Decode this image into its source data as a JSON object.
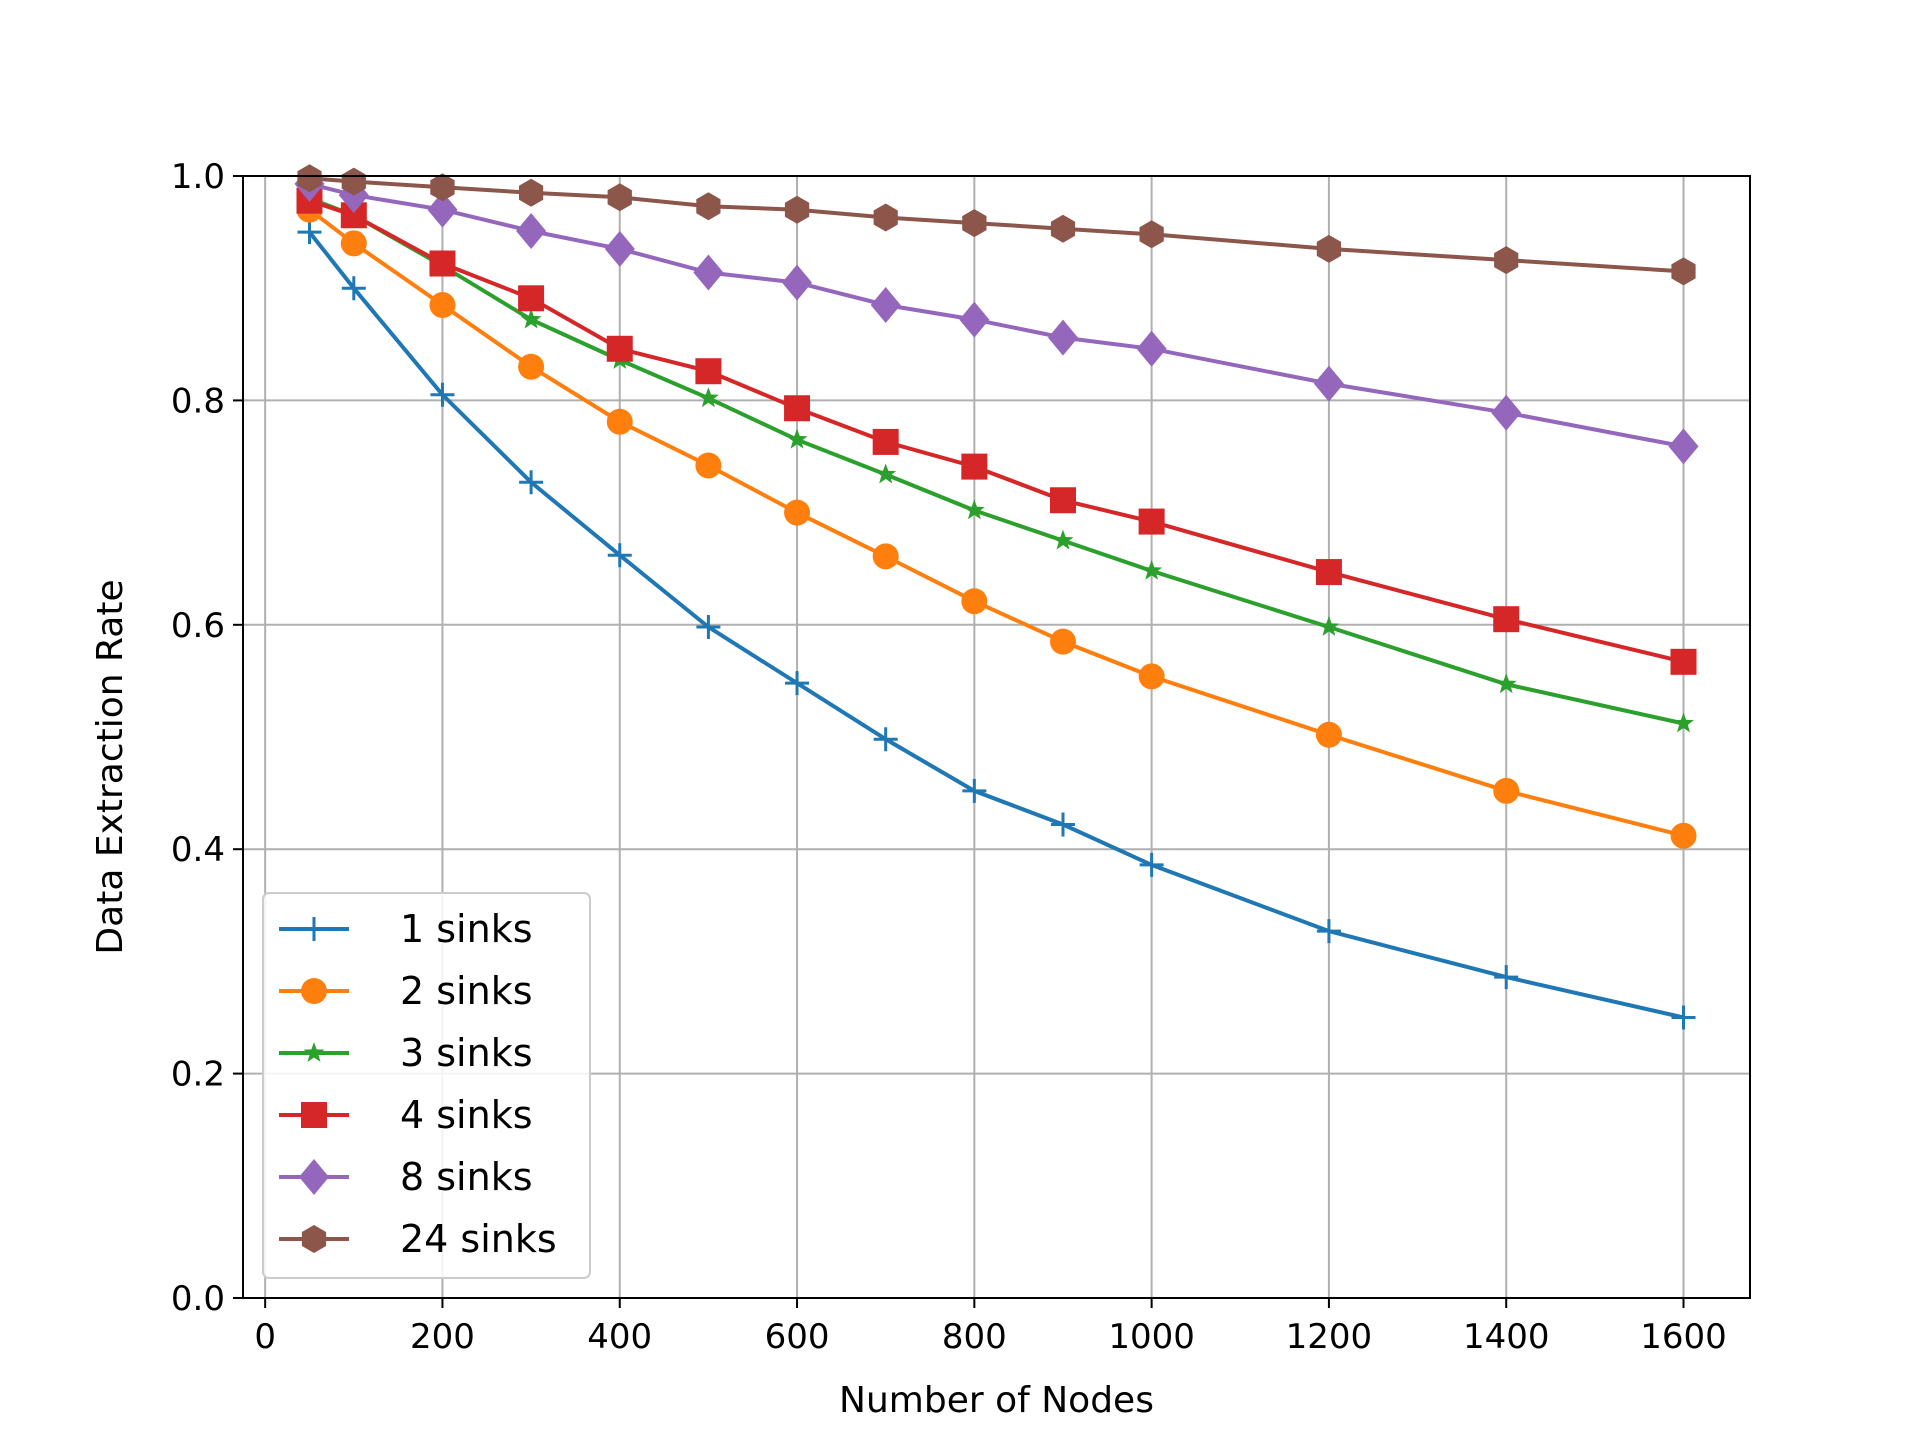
{
  "chart_data": {
    "type": "line",
    "title": "",
    "xlabel": "Number of Nodes",
    "ylabel": "Data Extraction Rate",
    "xlim": [
      -25,
      1675
    ],
    "ylim": [
      0,
      1.0
    ],
    "xticks": [
      0,
      200,
      400,
      600,
      800,
      1000,
      1200,
      1400,
      1600
    ],
    "yticks": [
      0.0,
      0.2,
      0.4,
      0.6,
      0.8,
      1.0
    ],
    "xtick_labels": [
      "0",
      "200",
      "400",
      "600",
      "800",
      "1000",
      "1200",
      "1400",
      "1600"
    ],
    "ytick_labels": [
      "0.0",
      "0.2",
      "0.4",
      "0.6",
      "0.8",
      "1.0"
    ],
    "grid": true,
    "legend_position": "lower-left",
    "x": [
      50,
      100,
      200,
      300,
      400,
      500,
      600,
      700,
      800,
      900,
      1000,
      1200,
      1400,
      1600
    ],
    "series": [
      {
        "name": "1 sinks",
        "color": "#1f77b4",
        "marker": "plus",
        "values": [
          0.95,
          0.9,
          0.805,
          0.727,
          0.662,
          0.598,
          0.548,
          0.498,
          0.452,
          0.422,
          0.386,
          0.327,
          0.286,
          0.25
        ]
      },
      {
        "name": "2 sinks",
        "color": "#ff7f0e",
        "marker": "circle",
        "values": [
          0.97,
          0.94,
          0.885,
          0.83,
          0.781,
          0.742,
          0.7,
          0.661,
          0.621,
          0.585,
          0.554,
          0.502,
          0.452,
          0.412
        ]
      },
      {
        "name": "3 sinks",
        "color": "#2ca02c",
        "marker": "star",
        "values": [
          0.98,
          0.965,
          0.92,
          0.872,
          0.836,
          0.802,
          0.765,
          0.734,
          0.702,
          0.675,
          0.648,
          0.598,
          0.547,
          0.512
        ]
      },
      {
        "name": "4 sinks",
        "color": "#d62728",
        "marker": "square",
        "values": [
          0.978,
          0.965,
          0.922,
          0.891,
          0.846,
          0.826,
          0.793,
          0.763,
          0.741,
          0.711,
          0.692,
          0.647,
          0.605,
          0.567
        ]
      },
      {
        "name": "8 sinks",
        "color": "#9467bd",
        "marker": "diamond",
        "values": [
          0.993,
          0.983,
          0.97,
          0.951,
          0.935,
          0.914,
          0.905,
          0.885,
          0.872,
          0.856,
          0.846,
          0.815,
          0.789,
          0.759
        ]
      },
      {
        "name": "24 sinks",
        "color": "#8c564b",
        "marker": "hexagon",
        "values": [
          0.998,
          0.995,
          0.99,
          0.985,
          0.981,
          0.973,
          0.97,
          0.963,
          0.958,
          0.953,
          0.948,
          0.935,
          0.925,
          0.915
        ]
      }
    ]
  }
}
